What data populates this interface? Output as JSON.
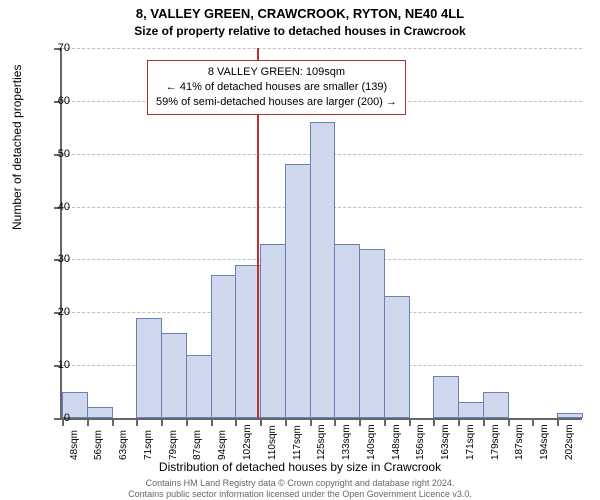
{
  "title": "8, VALLEY GREEN, CRAWCROOK, RYTON, NE40 4LL",
  "subtitle": "Size of property relative to detached houses in Crawcrook",
  "chart": {
    "type": "histogram",
    "y_axis": {
      "label": "Number of detached properties",
      "min": 0,
      "max": 70,
      "tick_step": 10,
      "label_fontsize": 12,
      "tick_fontsize": 11
    },
    "x_axis": {
      "label": "Distribution of detached houses by size in Crawcrook",
      "label_fontsize": 12,
      "tick_fontsize": 10,
      "tick_unit": "sqm",
      "ticks": [
        48,
        56,
        63,
        71,
        79,
        87,
        94,
        102,
        110,
        117,
        125,
        133,
        140,
        148,
        156,
        163,
        171,
        179,
        187,
        194,
        202
      ]
    },
    "bars": [
      5,
      2,
      0,
      19,
      16,
      12,
      27,
      29,
      33,
      48,
      56,
      33,
      32,
      23,
      0,
      8,
      3,
      5,
      0,
      0,
      1
    ],
    "bar_color": "#cfd8ec",
    "bar_border_color": "#6a7fb5",
    "grid_color": "#bfbfbf",
    "axis_color": "#666666",
    "background_color": "#ffffff",
    "marker": {
      "value_sqm": 109,
      "line_color": "#c03030",
      "box_border_color": "#b03030",
      "box_bg": "#ffffff",
      "lines": [
        "8 VALLEY GREEN: 109sqm",
        "← 41% of detached houses are smaller (139)",
        "59% of semi-detached houses are larger (200) →"
      ]
    }
  },
  "footer_lines": [
    "Contains HM Land Registry data © Crown copyright and database right 2024.",
    "Contains public sector information licensed under the Open Government Licence v3.0."
  ]
}
